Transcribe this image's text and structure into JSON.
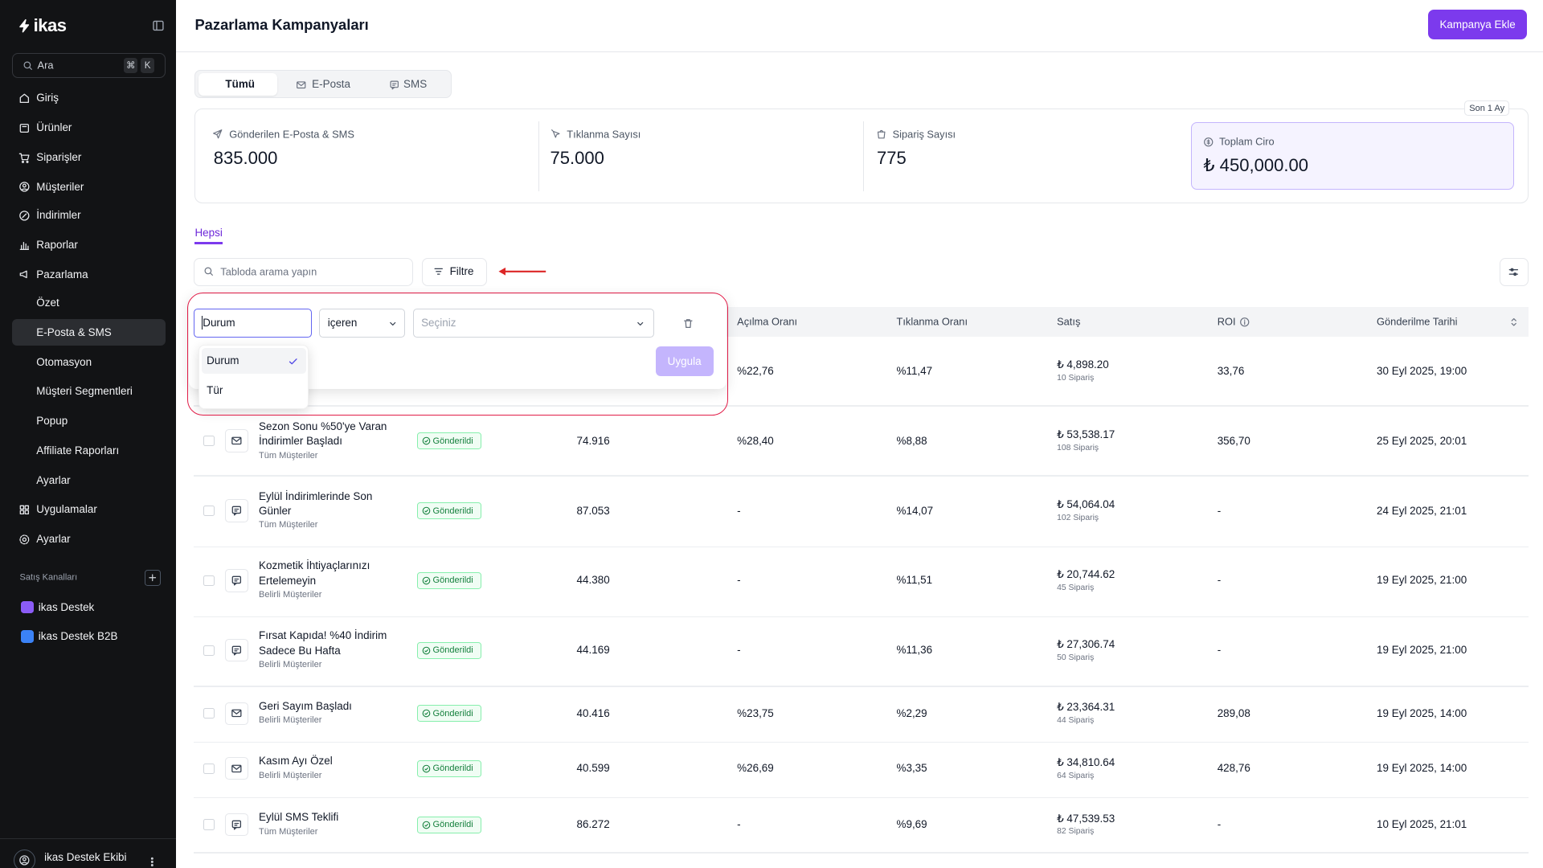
{
  "sidebar": {
    "logo": "ikas",
    "search": {
      "placeholder": "Ara",
      "shortcut": [
        "⌘",
        "K"
      ]
    },
    "nav_top": [
      "Giriş",
      "Ürünler",
      "Siparişler",
      "Müşteriler",
      "İndirimler",
      "Raporlar",
      "Pazarlama"
    ],
    "marketing_sub": [
      "Özet",
      "E-Posta & SMS",
      "Otomasyon",
      "Müşteri Segmentleri",
      "Popup",
      "Affiliate Raporları",
      "Ayarlar"
    ],
    "nav_bottom": [
      "Uygulamalar",
      "Ayarlar"
    ],
    "channels_title": "Satış Kanalları",
    "channels": [
      "ikas Destek",
      "ikas Destek B2B"
    ],
    "user": "ikas Destek Ekibi"
  },
  "header": {
    "title": "Pazarlama Kampanyaları",
    "button": "Kampanya Ekle"
  },
  "tabs": [
    "Tümü",
    "E-Posta",
    "SMS"
  ],
  "period": "Son 1 Ay",
  "stats": [
    {
      "label": "Gönderilen E-Posta & SMS",
      "value": "835.000"
    },
    {
      "label": "Tıklanma Sayısı",
      "value": "75.000"
    },
    {
      "label": "Sipariş Sayısı",
      "value": "775"
    },
    {
      "label": "Toplam Ciro",
      "value": "₺ 450,000.00"
    }
  ],
  "view_tab": "Hepsi",
  "toolbar": {
    "search_placeholder": "Tabloda arama yapın",
    "filter_button": "Filtre"
  },
  "filter": {
    "field": "Durum",
    "operator": "içeren",
    "value_placeholder": "Seçiniz",
    "apply": "Uygula",
    "options": [
      "Durum",
      "Tür"
    ]
  },
  "table": {
    "columns": [
      "Açılma Oranı",
      "Tıklanma Oranı",
      "Satış",
      "ROI",
      "Gönderilme Tarihi"
    ],
    "rows": [
      {
        "open_rate": "%22,76",
        "click_rate": "%11,47",
        "sales": "₺ 4,898.20",
        "orders": "10 Sipariş",
        "roi": "33,76",
        "date": "30 Eyl 2025, 19:00"
      },
      {
        "icon": "mail",
        "name": "Sezon Sonu %50'ye Varan İndirimler Başladı",
        "audience": "Tüm Müşteriler",
        "status": "Gönderildi",
        "sent": "74.916",
        "open_rate": "%28,40",
        "click_rate": "%8,88",
        "sales": "₺ 53,538.17",
        "orders": "108 Sipariş",
        "roi": "356,70",
        "date": "25 Eyl 2025, 20:01"
      },
      {
        "icon": "sms",
        "name": "Eylül İndirimlerinde Son Günler",
        "audience": "Tüm Müşteriler",
        "status": "Gönderildi",
        "sent": "87.053",
        "open_rate": "-",
        "click_rate": "%14,07",
        "sales": "₺ 54,064.04",
        "orders": "102 Sipariş",
        "roi": "-",
        "date": "24 Eyl 2025, 21:01"
      },
      {
        "icon": "sms",
        "name": "Kozmetik İhtiyaçlarınızı Ertelemeyin",
        "audience": "Belirli Müşteriler",
        "status": "Gönderildi",
        "sent": "44.380",
        "open_rate": "-",
        "click_rate": "%11,51",
        "sales": "₺ 20,744.62",
        "orders": "45 Sipariş",
        "roi": "-",
        "date": "19 Eyl 2025, 21:00"
      },
      {
        "icon": "sms",
        "name": "Fırsat Kapıda! %40 İndirim Sadece Bu Hafta",
        "audience": "Belirli Müşteriler",
        "status": "Gönderildi",
        "sent": "44.169",
        "open_rate": "-",
        "click_rate": "%11,36",
        "sales": "₺ 27,306.74",
        "orders": "50 Sipariş",
        "roi": "-",
        "date": "19 Eyl 2025, 21:00"
      },
      {
        "icon": "mail",
        "name": "Geri Sayım Başladı",
        "audience": "Belirli Müşteriler",
        "status": "Gönderildi",
        "sent": "40.416",
        "open_rate": "%23,75",
        "click_rate": "%2,29",
        "sales": "₺ 23,364.31",
        "orders": "44 Sipariş",
        "roi": "289,08",
        "date": "19 Eyl 2025, 14:00"
      },
      {
        "icon": "mail",
        "name": "Kasım Ayı Özel",
        "audience": "Belirli Müşteriler",
        "status": "Gönderildi",
        "sent": "40.599",
        "open_rate": "%26,69",
        "click_rate": "%3,35",
        "sales": "₺ 34,810.64",
        "orders": "64 Sipariş",
        "roi": "428,76",
        "date": "19 Eyl 2025, 14:00"
      },
      {
        "icon": "sms",
        "name": "Eylül SMS Teklifi",
        "audience": "Tüm Müşteriler",
        "status": "Gönderildi",
        "sent": "86.272",
        "open_rate": "-",
        "click_rate": "%9,69",
        "sales": "₺ 47,539.53",
        "orders": "82 Sipariş",
        "roi": "-",
        "date": "10 Eyl 2025, 21:01"
      }
    ]
  }
}
